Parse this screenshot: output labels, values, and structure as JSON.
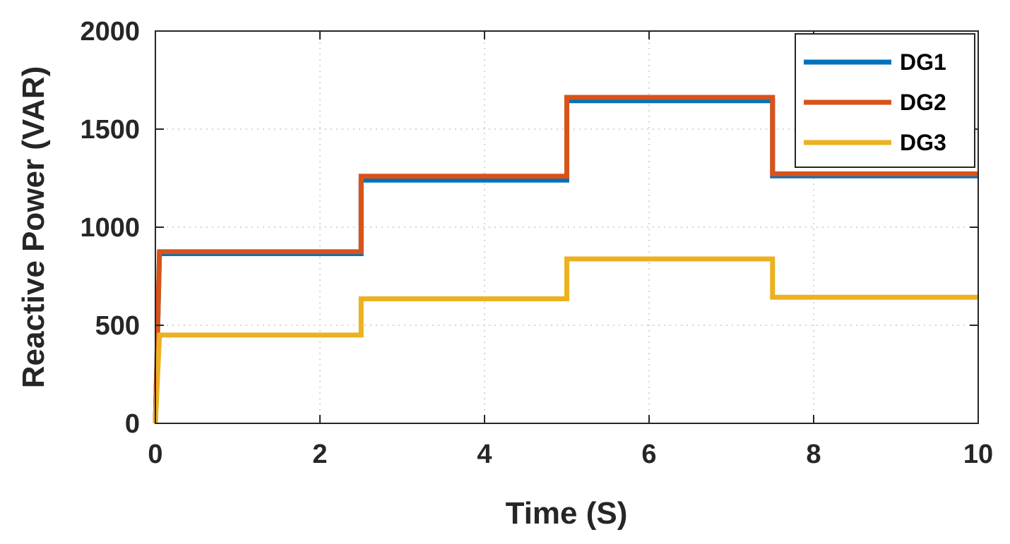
{
  "chart_data": {
    "type": "line",
    "xlabel": "Time (S)",
    "ylabel": "Reactive Power (VAR)",
    "xlim": [
      0,
      10
    ],
    "ylim": [
      0,
      2000
    ],
    "xticks": [
      0,
      2,
      4,
      6,
      8,
      10
    ],
    "yticks": [
      0,
      500,
      1000,
      1500,
      2000
    ],
    "grid": true,
    "legend_position": "top-right",
    "series": [
      {
        "name": "DG1",
        "color": "#0072BD",
        "x": [
          0.0,
          0.05,
          2.5,
          2.5,
          5.0,
          5.0,
          7.5,
          7.5,
          10.0
        ],
        "y": [
          0,
          865,
          865,
          1240,
          1240,
          1645,
          1645,
          1262,
          1262
        ]
      },
      {
        "name": "DG2",
        "color": "#D95319",
        "x": [
          0.0,
          0.05,
          2.5,
          2.5,
          5.0,
          5.0,
          7.5,
          7.5,
          10.0
        ],
        "y": [
          0,
          875,
          875,
          1260,
          1260,
          1662,
          1662,
          1272,
          1272
        ]
      },
      {
        "name": "DG3",
        "color": "#EDB120",
        "x": [
          0.0,
          0.05,
          2.5,
          2.5,
          5.0,
          5.0,
          7.5,
          7.5,
          10.0
        ],
        "y": [
          0,
          450,
          450,
          635,
          635,
          838,
          838,
          643,
          643
        ]
      }
    ]
  }
}
